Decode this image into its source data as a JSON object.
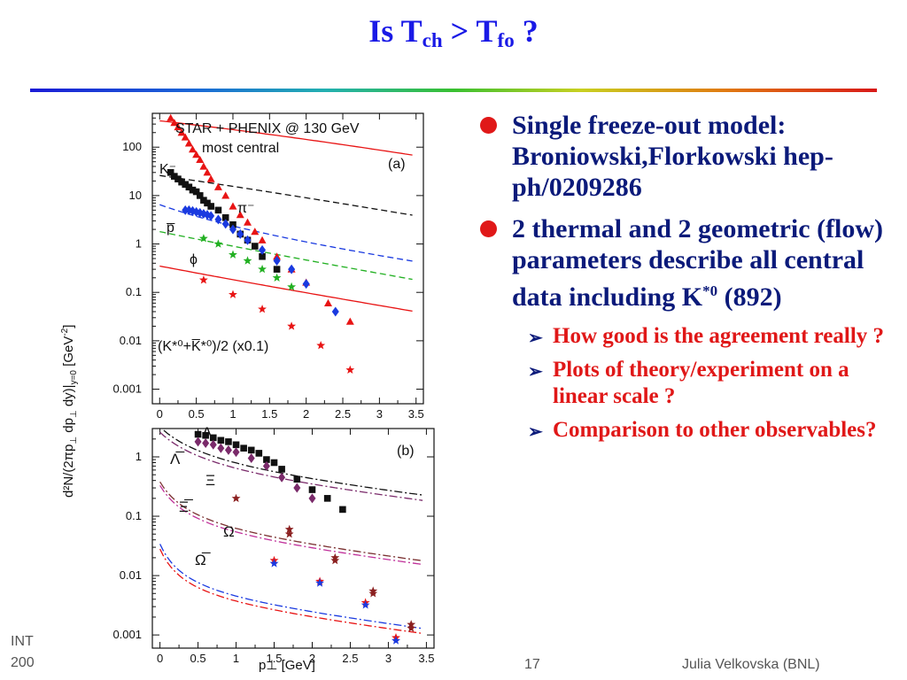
{
  "slide": {
    "title_main": "Is T",
    "title_sub1": "ch",
    "title_mid": " > T",
    "title_sub2": "fo",
    "title_end": " ?",
    "slide_number": "17",
    "footer_left_1": "INT",
    "footer_left_2": "200",
    "footer_right": "Julia Velkovska (BNL)"
  },
  "bullets": [
    {
      "text": "Single freeze-out model: Broniowski,Florkowski hep-ph/0209286"
    },
    {
      "text": "2 thermal and 2 geometric (flow) parameters describe all central data including K",
      "sup": "*0",
      "tail": " (892)"
    }
  ],
  "subbullets": [
    {
      "text": "How good is the agreement really ?"
    },
    {
      "text": "Plots of theory/experiment on a linear scale ?"
    },
    {
      "text": "Comparison to other observables?"
    }
  ],
  "colors": {
    "title": "#1a1ae6",
    "bullet_text": "#0b1a7a",
    "subbullet_text": "#e01818",
    "bullet_dot": "#e01818"
  },
  "chart_data": [
    {
      "type": "scatter",
      "panel": "(a)",
      "title": "STAR + PHENIX  @ 130 GeV",
      "subtitle": "most central",
      "ylabel": "d²N/(2πp⊥ dp⊥ dy)|y=0  [GeV⁻²]",
      "xlabel": "",
      "xlim": [
        -0.1,
        3.6
      ],
      "ylim": [
        0.0005,
        500
      ],
      "yscale": "log",
      "xticks": [
        "0",
        "0.5",
        "1",
        "1.5",
        "2",
        "2.5",
        "3",
        "3.5"
      ],
      "yticks": [
        "0.001",
        "0.01",
        "0.1",
        "1",
        "10",
        "100"
      ],
      "grid": false,
      "series": [
        {
          "name": "π⁻",
          "color": "#e81414",
          "marker": "triangle",
          "x": [
            0.15,
            0.2,
            0.25,
            0.3,
            0.35,
            0.4,
            0.45,
            0.5,
            0.55,
            0.6,
            0.65,
            0.7,
            0.8,
            0.9,
            1.0,
            1.1,
            1.2,
            1.3,
            1.4,
            1.6,
            1.8,
            2.0,
            2.3,
            2.6
          ],
          "y": [
            400,
            320,
            260,
            200,
            160,
            120,
            90,
            70,
            55,
            40,
            30,
            22,
            15,
            10,
            6,
            4,
            2.8,
            1.8,
            1.2,
            0.55,
            0.3,
            0.16,
            0.06,
            0.025
          ]
        },
        {
          "name": "K⁻",
          "color": "#111111",
          "marker": "square",
          "x": [
            0.15,
            0.2,
            0.25,
            0.3,
            0.35,
            0.4,
            0.45,
            0.5,
            0.55,
            0.6,
            0.65,
            0.7,
            0.8,
            0.9,
            1.0,
            1.1,
            1.2,
            1.3,
            1.4,
            1.6
          ],
          "y": [
            30,
            25,
            22,
            19,
            17,
            15,
            13,
            12,
            10,
            8,
            7,
            6,
            5,
            3.5,
            2.5,
            1.6,
            1.2,
            0.9,
            0.55,
            0.3
          ]
        },
        {
          "name": "p̅",
          "color": "#1a3ae0",
          "marker": "diamond",
          "x": [
            0.35,
            0.4,
            0.45,
            0.5,
            0.55,
            0.6,
            0.65,
            0.7,
            0.8,
            0.9,
            1.0,
            1.1,
            1.2,
            1.4,
            1.6,
            1.8,
            2.0,
            2.4
          ],
          "y": [
            5,
            5,
            4.8,
            4.6,
            4.4,
            4.2,
            4,
            3.8,
            3.2,
            2.6,
            2,
            1.6,
            1.2,
            0.75,
            0.45,
            0.3,
            0.15,
            0.04
          ]
        },
        {
          "name": "ϕ",
          "color": "#22b022",
          "marker": "star",
          "x": [
            0.6,
            0.8,
            1.0,
            1.2,
            1.4,
            1.6,
            1.8
          ],
          "y": [
            1.3,
            1.0,
            0.6,
            0.45,
            0.3,
            0.2,
            0.13
          ]
        },
        {
          "name": "(K*⁰+K̅*⁰)/2 (x0.1)",
          "color": "#e81414",
          "marker": "star",
          "x": [
            0.6,
            1.0,
            1.4,
            1.8,
            2.2,
            2.6
          ],
          "y": [
            0.18,
            0.09,
            0.045,
            0.02,
            0.008,
            0.0025
          ]
        }
      ],
      "curves": [
        {
          "name": "π⁻ model",
          "color": "#e81414",
          "style": "solid",
          "y0": 350,
          "a": 2.55,
          "b": 0.55
        },
        {
          "name": "K⁻ model",
          "color": "#111111",
          "style": "dash",
          "y0": 26,
          "a": 2.0,
          "b": 0.64
        },
        {
          "name": "p̅ model",
          "color": "#1a3ae0",
          "style": "dash",
          "y0": 6.5,
          "a": 0.8,
          "b": 0.95
        },
        {
          "name": "ϕ model",
          "color": "#22b022",
          "style": "dash",
          "y0": 1.8,
          "a": 1.4,
          "b": 0.75
        },
        {
          "name": "K*⁰ model",
          "color": "#e81414",
          "style": "solid",
          "y0": 0.35,
          "a": 1.5,
          "b": 0.78
        }
      ]
    },
    {
      "type": "scatter",
      "panel": "(b)",
      "xlabel": "p⊥ [GeV]",
      "xlim": [
        -0.1,
        3.6
      ],
      "ylim": [
        0.0006,
        3
      ],
      "yscale": "log",
      "xticks": [
        "0",
        "0.5",
        "1",
        "1.5",
        "2",
        "2.5",
        "3",
        "3.5"
      ],
      "yticks": [
        "0.001",
        "0.01",
        "0.1",
        "1"
      ],
      "grid": false,
      "series": [
        {
          "name": "Λ",
          "color": "#111111",
          "marker": "square",
          "x": [
            0.5,
            0.6,
            0.7,
            0.8,
            0.9,
            1.0,
            1.1,
            1.2,
            1.3,
            1.4,
            1.5,
            1.6,
            1.8,
            2.0,
            2.2,
            2.4
          ],
          "y": [
            2.4,
            2.3,
            2.1,
            1.9,
            1.8,
            1.6,
            1.4,
            1.3,
            1.15,
            0.9,
            0.8,
            0.62,
            0.42,
            0.28,
            0.2,
            0.13
          ]
        },
        {
          "name": "Λ̅",
          "color": "#7a2a6a",
          "marker": "diamond",
          "x": [
            0.5,
            0.6,
            0.7,
            0.8,
            0.9,
            1.0,
            1.2,
            1.4,
            1.6,
            1.8,
            2.0
          ],
          "y": [
            1.8,
            1.7,
            1.6,
            1.4,
            1.3,
            1.2,
            0.95,
            0.7,
            0.45,
            0.3,
            0.2
          ]
        },
        {
          "name": "Ξ",
          "color": "#8b2020",
          "marker": "star",
          "x": [
            1.0,
            1.7,
            2.3,
            2.8,
            3.3
          ],
          "y": [
            0.2,
            0.06,
            0.02,
            0.0055,
            0.0015
          ]
        },
        {
          "name": "Ξ̅",
          "color": "#8b2020",
          "marker": "star",
          "x": [
            1.7,
            2.3,
            2.8,
            3.3
          ],
          "y": [
            0.05,
            0.018,
            0.005,
            0.0013
          ]
        },
        {
          "name": "Ω",
          "color": "#e81414",
          "marker": "star",
          "x": [
            1.5,
            2.1,
            2.7,
            3.1
          ],
          "y": [
            0.018,
            0.008,
            0.0035,
            0.0009
          ]
        },
        {
          "name": "Ω̅",
          "color": "#1a3ae0",
          "marker": "star",
          "x": [
            1.5,
            2.1,
            2.7,
            3.1
          ],
          "y": [
            0.016,
            0.0075,
            0.0032,
            0.0008
          ]
        }
      ],
      "curves": [
        {
          "name": "Λ model",
          "color": "#111111",
          "style": "dashdot",
          "y0": 3.2,
          "a": 0.35,
          "b": 1.35
        },
        {
          "name": "Λ̅ model",
          "color": "#7a2a6a",
          "style": "dashdot",
          "y0": 2.6,
          "a": 0.35,
          "b": 1.35
        },
        {
          "name": "Ξ model",
          "color": "#7a3030",
          "style": "dashdot",
          "y0": 0.38,
          "a": 0.2,
          "b": 1.25
        },
        {
          "name": "Ξ̅ model",
          "color": "#c0309a",
          "style": "dashdot",
          "y0": 0.33,
          "a": 0.2,
          "b": 1.25
        },
        {
          "name": "Ω model",
          "color": "#1a3ae0",
          "style": "dashdot",
          "y0": 0.034,
          "a": 0.15,
          "b": 1.2
        },
        {
          "name": "Ω̅ model",
          "color": "#e81414",
          "style": "dashdot",
          "y0": 0.028,
          "a": 0.15,
          "b": 1.2
        }
      ]
    }
  ]
}
